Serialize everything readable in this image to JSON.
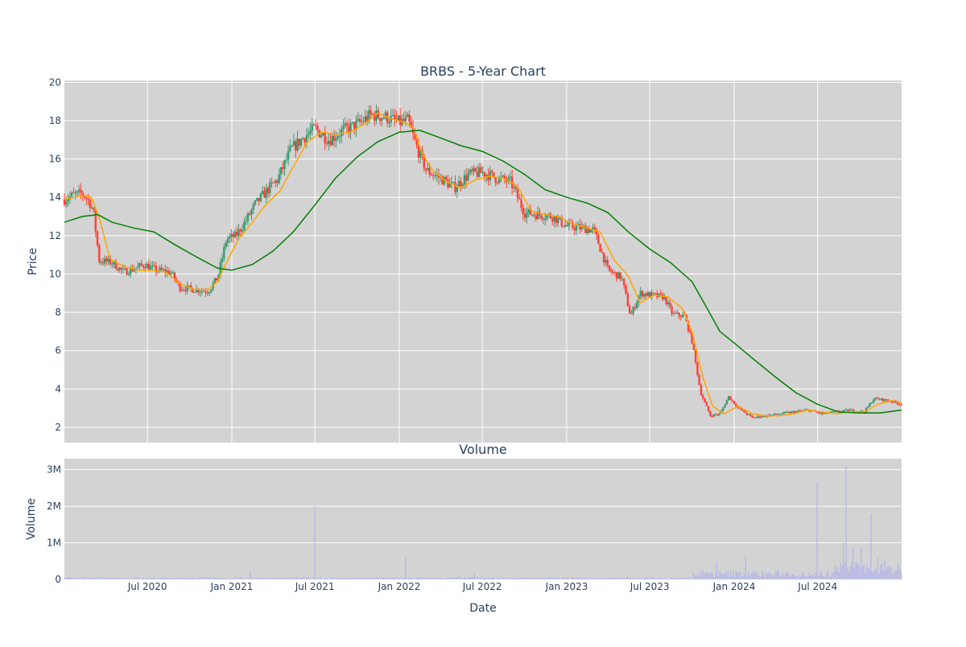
{
  "chart_data": [
    {
      "type": "candlestick",
      "title": "BRBS - 5-Year Chart",
      "ylabel": "Price",
      "ylim": [
        1.2,
        20.1
      ],
      "yticks": [
        2,
        4,
        6,
        8,
        10,
        12,
        14,
        16,
        18,
        20
      ],
      "grid": true,
      "legend": "none",
      "x_range": [
        "2020-01-02",
        "2024-12-31"
      ],
      "x_ticks": [
        "2020-07-01",
        "2021-01-01",
        "2021-07-01",
        "2022-01-01",
        "2022-07-01",
        "2023-01-01",
        "2023-07-01",
        "2024-01-01",
        "2024-07-01"
      ],
      "price_path": [
        [
          "2020-01-02",
          13.9
        ],
        [
          "2020-01-20",
          14.1
        ],
        [
          "2020-02-10",
          14.2
        ],
        [
          "2020-02-25",
          13.8
        ],
        [
          "2020-03-05",
          13.3
        ],
        [
          "2020-03-18",
          10.7
        ],
        [
          "2020-04-15",
          10.6
        ],
        [
          "2020-05-10",
          10.1
        ],
        [
          "2020-06-05",
          10.3
        ],
        [
          "2020-06-25",
          10.5
        ],
        [
          "2020-07-20",
          10.2
        ],
        [
          "2020-08-20",
          10.1
        ],
        [
          "2020-09-10",
          9.3
        ],
        [
          "2020-10-10",
          9.2
        ],
        [
          "2020-11-10",
          9.1
        ],
        [
          "2020-12-01",
          9.8
        ],
        [
          "2020-12-20",
          11.8
        ],
        [
          "2021-01-10",
          12.0
        ],
        [
          "2021-02-01",
          12.8
        ],
        [
          "2021-02-20",
          13.6
        ],
        [
          "2021-03-20",
          14.4
        ],
        [
          "2021-04-10",
          14.9
        ],
        [
          "2021-05-10",
          16.5
        ],
        [
          "2021-06-10",
          17.2
        ],
        [
          "2021-07-01",
          17.6
        ],
        [
          "2021-08-01",
          17.0
        ],
        [
          "2021-09-01",
          17.5
        ],
        [
          "2021-10-01",
          17.8
        ],
        [
          "2021-11-01",
          18.3
        ],
        [
          "2021-12-01",
          18.2
        ],
        [
          "2022-01-01",
          17.9
        ],
        [
          "2022-01-20",
          18.0
        ],
        [
          "2022-02-10",
          16.5
        ],
        [
          "2022-03-01",
          15.4
        ],
        [
          "2022-04-01",
          15.0
        ],
        [
          "2022-05-01",
          14.5
        ],
        [
          "2022-06-01",
          15.2
        ],
        [
          "2022-07-01",
          15.3
        ],
        [
          "2022-08-01",
          15.0
        ],
        [
          "2022-09-01",
          14.8
        ],
        [
          "2022-10-01",
          13.2
        ],
        [
          "2022-11-01",
          13.1
        ],
        [
          "2022-12-01",
          13.0
        ],
        [
          "2023-01-01",
          12.5
        ],
        [
          "2023-02-01",
          12.4
        ],
        [
          "2023-03-01",
          12.3
        ],
        [
          "2023-04-01",
          10.2
        ],
        [
          "2023-05-01",
          9.8
        ],
        [
          "2023-05-20",
          7.8
        ],
        [
          "2023-06-10",
          9.0
        ],
        [
          "2023-07-01",
          8.9
        ],
        [
          "2023-08-01",
          8.8
        ],
        [
          "2023-08-20",
          7.9
        ],
        [
          "2023-09-15",
          7.8
        ],
        [
          "2023-10-01",
          6.5
        ],
        [
          "2023-10-20",
          3.8
        ],
        [
          "2023-11-10",
          2.6
        ],
        [
          "2023-12-01",
          2.7
        ],
        [
          "2023-12-20",
          3.6
        ],
        [
          "2024-01-10",
          3.0
        ],
        [
          "2024-02-10",
          2.5
        ],
        [
          "2024-03-10",
          2.6
        ],
        [
          "2024-04-10",
          2.7
        ],
        [
          "2024-05-10",
          2.8
        ],
        [
          "2024-06-10",
          2.9
        ],
        [
          "2024-07-10",
          2.7
        ],
        [
          "2024-08-10",
          2.8
        ],
        [
          "2024-09-10",
          2.9
        ],
        [
          "2024-10-10",
          2.8
        ],
        [
          "2024-11-01",
          3.5
        ],
        [
          "2024-12-01",
          3.4
        ],
        [
          "2024-12-31",
          3.2
        ]
      ],
      "series": [
        {
          "type": "line",
          "color": "#ffa500",
          "points": [
            [
              "2020-01-02",
              13.9
            ],
            [
              "2020-02-15",
              14.1
            ],
            [
              "2020-03-01",
              14.0
            ],
            [
              "2020-03-20",
              12.8
            ],
            [
              "2020-04-10",
              10.8
            ],
            [
              "2020-05-10",
              10.4
            ],
            [
              "2020-06-10",
              10.2
            ],
            [
              "2020-07-10",
              10.2
            ],
            [
              "2020-08-10",
              10.1
            ],
            [
              "2020-09-10",
              9.5
            ],
            [
              "2020-10-10",
              9.2
            ],
            [
              "2020-11-10",
              9.2
            ],
            [
              "2020-12-01",
              9.6
            ],
            [
              "2020-12-20",
              10.6
            ],
            [
              "2021-01-15",
              11.8
            ],
            [
              "2021-02-15",
              12.7
            ],
            [
              "2021-03-15",
              13.6
            ],
            [
              "2021-04-15",
              14.3
            ],
            [
              "2021-05-15",
              15.6
            ],
            [
              "2021-06-15",
              16.9
            ],
            [
              "2021-07-15",
              17.4
            ],
            [
              "2021-08-15",
              17.3
            ],
            [
              "2021-09-15",
              17.4
            ],
            [
              "2021-10-15",
              17.8
            ],
            [
              "2021-11-15",
              18.4
            ],
            [
              "2021-12-15",
              18.1
            ],
            [
              "2022-01-15",
              17.9
            ],
            [
              "2022-02-01",
              17.6
            ],
            [
              "2022-02-20",
              16.3
            ],
            [
              "2022-03-15",
              15.4
            ],
            [
              "2022-04-15",
              14.8
            ],
            [
              "2022-05-15",
              14.5
            ],
            [
              "2022-06-15",
              14.9
            ],
            [
              "2022-07-15",
              15.1
            ],
            [
              "2022-08-15",
              15.0
            ],
            [
              "2022-09-15",
              14.6
            ],
            [
              "2022-10-15",
              13.3
            ],
            [
              "2022-11-15",
              13.1
            ],
            [
              "2022-12-15",
              13.0
            ],
            [
              "2023-01-15",
              12.6
            ],
            [
              "2023-02-15",
              12.4
            ],
            [
              "2023-03-15",
              12.2
            ],
            [
              "2023-04-15",
              10.7
            ],
            [
              "2023-05-15",
              9.9
            ],
            [
              "2023-06-10",
              8.5
            ],
            [
              "2023-07-10",
              8.9
            ],
            [
              "2023-08-10",
              8.8
            ],
            [
              "2023-09-10",
              8.2
            ],
            [
              "2023-10-01",
              7.0
            ],
            [
              "2023-10-25",
              4.6
            ],
            [
              "2023-11-15",
              3.1
            ],
            [
              "2023-12-10",
              2.7
            ],
            [
              "2024-01-10",
              3.1
            ],
            [
              "2024-02-10",
              2.7
            ],
            [
              "2024-03-10",
              2.6
            ],
            [
              "2024-04-10",
              2.6
            ],
            [
              "2024-05-10",
              2.7
            ],
            [
              "2024-06-10",
              2.9
            ],
            [
              "2024-07-10",
              2.8
            ],
            [
              "2024-08-10",
              2.7
            ],
            [
              "2024-09-10",
              2.8
            ],
            [
              "2024-10-10",
              2.8
            ],
            [
              "2024-11-10",
              3.2
            ],
            [
              "2024-12-10",
              3.4
            ],
            [
              "2024-12-31",
              3.3
            ]
          ]
        },
        {
          "type": "line",
          "color": "#008000",
          "points": [
            [
              "2020-01-02",
              12.7
            ],
            [
              "2020-02-10",
              13.0
            ],
            [
              "2020-03-15",
              13.1
            ],
            [
              "2020-04-15",
              12.7
            ],
            [
              "2020-06-01",
              12.4
            ],
            [
              "2020-07-15",
              12.2
            ],
            [
              "2020-09-01",
              11.5
            ],
            [
              "2020-10-15",
              10.9
            ],
            [
              "2020-12-01",
              10.3
            ],
            [
              "2021-01-01",
              10.2
            ],
            [
              "2021-02-15",
              10.5
            ],
            [
              "2021-04-01",
              11.2
            ],
            [
              "2021-05-15",
              12.2
            ],
            [
              "2021-07-01",
              13.6
            ],
            [
              "2021-08-15",
              15.0
            ],
            [
              "2021-10-01",
              16.1
            ],
            [
              "2021-11-15",
              16.9
            ],
            [
              "2022-01-01",
              17.4
            ],
            [
              "2022-02-15",
              17.5
            ],
            [
              "2022-04-01",
              17.1
            ],
            [
              "2022-05-15",
              16.7
            ],
            [
              "2022-07-01",
              16.4
            ],
            [
              "2022-08-15",
              15.9
            ],
            [
              "2022-10-01",
              15.2
            ],
            [
              "2022-11-15",
              14.4
            ],
            [
              "2023-01-01",
              14.0
            ],
            [
              "2023-02-15",
              13.7
            ],
            [
              "2023-04-01",
              13.2
            ],
            [
              "2023-05-15",
              12.2
            ],
            [
              "2023-07-01",
              11.3
            ],
            [
              "2023-08-15",
              10.6
            ],
            [
              "2023-10-01",
              9.6
            ],
            [
              "2023-11-01",
              8.3
            ],
            [
              "2023-12-01",
              7.0
            ],
            [
              "2024-01-01",
              6.4
            ],
            [
              "2024-02-15",
              5.5
            ],
            [
              "2024-04-01",
              4.6
            ],
            [
              "2024-05-15",
              3.8
            ],
            [
              "2024-07-01",
              3.2
            ],
            [
              "2024-08-15",
              2.8
            ],
            [
              "2024-10-01",
              2.75
            ],
            [
              "2024-11-15",
              2.75
            ],
            [
              "2024-12-31",
              2.9
            ]
          ]
        }
      ]
    },
    {
      "type": "bar",
      "title": "Volume",
      "xlabel": "Date",
      "ylabel": "Volume",
      "ylim": [
        0,
        3300000
      ],
      "ytick_labels": [
        "0",
        "1M",
        "2M",
        "3M"
      ],
      "yticks": [
        0,
        1000000,
        2000000,
        3000000
      ],
      "grid": true,
      "color": "#b8b8e6",
      "x_tick_labels": [
        "Jul 2020",
        "Jan 2021",
        "Jul 2021",
        "Jan 2022",
        "Jul 2022",
        "Jan 2023",
        "Jul 2023",
        "Jan 2024",
        "Jul 2024"
      ],
      "spikes": [
        [
          "2021-02-10",
          220000
        ],
        [
          "2021-07-01",
          2000000
        ],
        [
          "2022-01-15",
          620000
        ],
        [
          "2022-06-15",
          170000
        ],
        [
          "2023-10-25",
          250000
        ],
        [
          "2023-11-25",
          450000
        ],
        [
          "2024-01-25",
          650000
        ],
        [
          "2024-07-01",
          2650000
        ],
        [
          "2024-08-25",
          1000000
        ],
        [
          "2024-09-01",
          3100000
        ],
        [
          "2024-09-15",
          900000
        ],
        [
          "2024-10-05",
          850000
        ],
        [
          "2024-10-25",
          1800000
        ],
        [
          "2024-11-10",
          600000
        ],
        [
          "2024-12-10",
          300000
        ]
      ]
    }
  ]
}
